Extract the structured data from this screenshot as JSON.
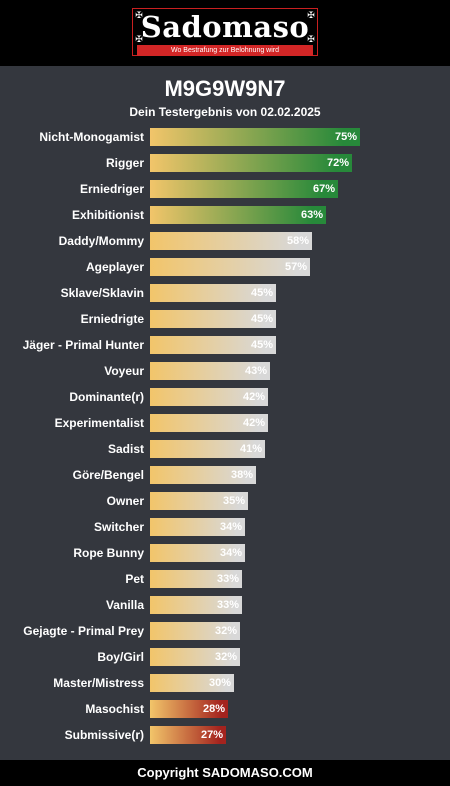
{
  "brand": {
    "name": "Sadomaso",
    "tagline": "Wo Bestrafung zur Belohnung wird"
  },
  "header": {
    "title": "M9G9W9N7",
    "subtitle": "Dein Testergebnis von 02.02.2025"
  },
  "colors": {
    "page_bg": "#34373e",
    "header_bg": "#000000",
    "bar_start": "#f2c56a",
    "green_end": "#27893a",
    "neutral_end": "#d8d8d8",
    "red_end": "#a4231e",
    "logo_red": "#d22626"
  },
  "chart_data": {
    "type": "bar",
    "orientation": "horizontal",
    "xlim": [
      0,
      100
    ],
    "categories": [
      "Nicht-Monogamist",
      "Rigger",
      "Erniedriger",
      "Exhibitionist",
      "Daddy/Mommy",
      "Ageplayer",
      "Sklave/Sklavin",
      "Erniedrigte",
      "Jäger - Primal Hunter",
      "Voyeur",
      "Dominante(r)",
      "Experimentalist",
      "Sadist",
      "Göre/Bengel",
      "Owner",
      "Switcher",
      "Rope Bunny",
      "Pet",
      "Vanilla",
      "Gejagte - Primal Prey",
      "Boy/Girl",
      "Master/Mistress",
      "Masochist",
      "Submissive(r)"
    ],
    "values": [
      75,
      72,
      67,
      63,
      58,
      57,
      45,
      45,
      45,
      43,
      42,
      42,
      41,
      38,
      35,
      34,
      34,
      33,
      33,
      32,
      32,
      30,
      28,
      27
    ],
    "value_labels": [
      "75%",
      "72%",
      "67%",
      "63%",
      "58%",
      "57%",
      "45%",
      "45%",
      "45%",
      "43%",
      "42%",
      "42%",
      "41%",
      "38%",
      "35%",
      "34%",
      "34%",
      "33%",
      "33%",
      "32%",
      "32%",
      "30%",
      "28%",
      "27%"
    ],
    "color_groups": [
      "green",
      "green",
      "green",
      "green",
      "neutral",
      "neutral",
      "neutral",
      "neutral",
      "neutral",
      "neutral",
      "neutral",
      "neutral",
      "neutral",
      "neutral",
      "neutral",
      "neutral",
      "neutral",
      "neutral",
      "neutral",
      "neutral",
      "neutral",
      "neutral",
      "red",
      "red"
    ]
  },
  "footer": {
    "copyright": "Copyright SADOMASO.COM"
  }
}
